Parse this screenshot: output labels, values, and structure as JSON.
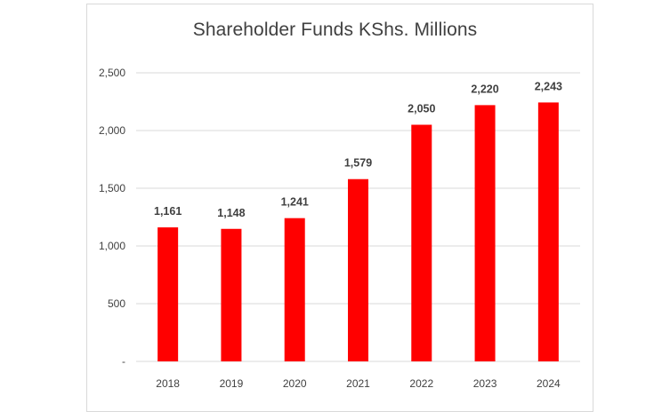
{
  "chart_data": {
    "type": "bar",
    "title": "Shareholder Funds KShs. Millions",
    "xlabel": "",
    "ylabel": "",
    "categories": [
      "2018",
      "2019",
      "2020",
      "2021",
      "2022",
      "2023",
      "2024"
    ],
    "values": [
      1161,
      1148,
      1241,
      1579,
      2050,
      2220,
      2243
    ],
    "data_labels": [
      "1,161",
      "1,148",
      "1,241",
      "1,579",
      "2,050",
      "2,220",
      "2,243"
    ],
    "ylim": [
      0,
      2500
    ],
    "yticks": [
      0,
      500,
      1000,
      1500,
      2000,
      2500
    ],
    "ytick_labels": [
      "-",
      "500",
      "1,000",
      "1,500",
      "2,000",
      "2,500"
    ],
    "grid": true,
    "legend": "none",
    "bar_color": "#ff0000",
    "grid_color": "#d9d9d9"
  }
}
